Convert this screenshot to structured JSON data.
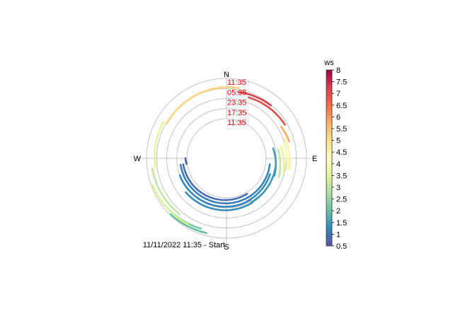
{
  "chart_data": {
    "type": "polar_time_series",
    "description_type": "trajectory",
    "direction_labels": [
      "N",
      "E",
      "S",
      "W"
    ],
    "ring_labels": [
      "11:35",
      "05:35",
      "23:35",
      "17:35",
      "11:35"
    ],
    "ring_label_color": "#ee0000",
    "start_label": "11/11/2022 11:35 - Start",
    "colorbar": {
      "title": "ws",
      "min": 0.5,
      "max": 8,
      "ticks": [
        "0.5",
        "1",
        "1.5",
        "2",
        "2.5",
        "3",
        "3.5",
        "4",
        "4.5",
        "5",
        "5.5",
        "6",
        "6.5",
        "7",
        "7.5",
        "8"
      ],
      "colors": [
        "#5e4fa2",
        "#3288bd",
        "#66c2a5",
        "#abdda4",
        "#e6f598",
        "#ffffbf",
        "#fee08b",
        "#fdae61",
        "#f46d43",
        "#d53e4f",
        "#9e0142"
      ]
    },
    "time_range_hours": [
      0,
      24
    ],
    "segments": [
      {
        "dir_start": 262,
        "dir_end": 270,
        "t_start": 0.4,
        "t_end": 0.9,
        "ws": 0.8
      },
      {
        "dir_start": 150,
        "dir_end": 262,
        "t_start": 0.9,
        "t_end": 2.4,
        "ws": 0.9
      },
      {
        "dir_start": 98,
        "dir_end": 150,
        "t_start": 2.4,
        "t_end": 3.0,
        "ws": 1.2
      },
      {
        "dir_start": 150,
        "dir_end": 262,
        "t_start": 3.0,
        "t_end": 4.0,
        "ws": 1.1
      },
      {
        "dir_start": 110,
        "dir_end": 155,
        "t_start": 4.0,
        "t_end": 4.8,
        "ws": 1.3
      },
      {
        "dir_start": 150,
        "dir_end": 250,
        "t_start": 5.0,
        "t_end": 6.0,
        "ws": 1.2
      },
      {
        "dir_start": 100,
        "dir_end": 150,
        "t_start": 6.0,
        "t_end": 6.6,
        "ws": 1.4
      },
      {
        "dir_start": 78,
        "dir_end": 110,
        "t_start": 4.8,
        "t_end": 6.8,
        "ws": 1.5
      },
      {
        "dir_start": 150,
        "dir_end": 230,
        "t_start": 7.0,
        "t_end": 8.0,
        "ws": 1.3
      },
      {
        "dir_start": 80,
        "dir_end": 110,
        "t_start": 7.5,
        "t_end": 9.5,
        "ws": 3.0
      },
      {
        "dir_start": 78,
        "dir_end": 105,
        "t_start": 9.5,
        "t_end": 11.5,
        "ws": 3.5
      },
      {
        "dir_start": 75,
        "dir_end": 100,
        "t_start": 11.5,
        "t_end": 13.0,
        "ws": 4.0
      },
      {
        "dir_start": 70,
        "dir_end": 100,
        "t_start": 13.0,
        "t_end": 14.5,
        "ws": 4.6
      },
      {
        "dir_start": 60,
        "dir_end": 75,
        "t_start": 14.0,
        "t_end": 15.0,
        "ws": 5.8
      },
      {
        "dir_start": 20,
        "dir_end": 60,
        "t_start": 15.0,
        "t_end": 16.5,
        "ws": 7.0
      },
      {
        "dir_start": 10,
        "dir_end": 40,
        "t_start": 16.5,
        "t_end": 17.5,
        "ws": 7.2
      },
      {
        "dir_start": 300,
        "dir_end": 370,
        "t_start": 17.5,
        "t_end": 19.0,
        "ws": 5.2
      },
      {
        "dir_start": 262,
        "dir_end": 300,
        "t_start": 19.0,
        "t_end": 19.8,
        "ws": 3.5
      },
      {
        "dir_start": 220,
        "dir_end": 262,
        "t_start": 19.8,
        "t_end": 21.0,
        "ws": 3.0
      },
      {
        "dir_start": 200,
        "dir_end": 230,
        "t_start": 21.0,
        "t_end": 22.5,
        "ws": 2.2
      },
      {
        "dir_start": 195,
        "dir_end": 225,
        "t_start": 22.5,
        "t_end": 23.5,
        "ws": 2.0
      },
      {
        "dir_start": 210,
        "dir_end": 250,
        "t_start": 22.0,
        "t_end": 23.2,
        "ws": 3.4
      }
    ]
  }
}
